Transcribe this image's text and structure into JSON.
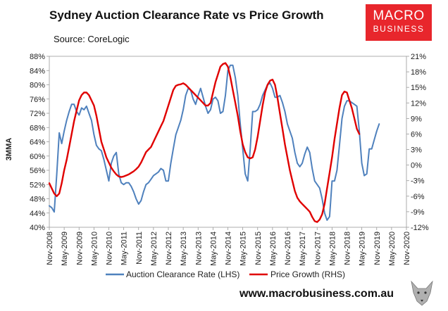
{
  "header": {
    "title": "Sydney Auction Clearance Rate vs Price Growth",
    "source": "Source: CoreLogic"
  },
  "logo": {
    "line1": "MACRO",
    "line2": "BUSINESS"
  },
  "footer": {
    "website": "www.macrobusiness.com.au"
  },
  "colors": {
    "lhs": "#4f81bd",
    "rhs": "#e00000",
    "logo_bg": "#e8262c"
  },
  "chart_data": {
    "type": "line",
    "title": "Sydney Auction Clearance Rate vs Price Growth",
    "ylabel": "3MMA",
    "ylim_left": [
      40,
      88
    ],
    "ylim_right": [
      -12,
      21
    ],
    "left_ticks": [
      "40%",
      "44%",
      "48%",
      "52%",
      "56%",
      "60%",
      "64%",
      "68%",
      "72%",
      "76%",
      "80%",
      "84%",
      "88%"
    ],
    "right_ticks": [
      "-12%",
      "-9%",
      "-6%",
      "-3%",
      "0%",
      "3%",
      "6%",
      "9%",
      "12%",
      "15%",
      "18%",
      "21%"
    ],
    "x_labels": [
      "Nov-2008",
      "May-2009",
      "Nov-2009",
      "May-2010",
      "Nov-2010",
      "May-2011",
      "Nov-2011",
      "May-2012",
      "Nov-2012",
      "May-2013",
      "Nov-2013",
      "May-2014",
      "Nov-2014",
      "May-2015",
      "Nov-2015",
      "May-2016",
      "Nov-2016",
      "May-2017",
      "Nov-2017",
      "May-2018",
      "Nov-2018",
      "May-2019",
      "Nov-2019",
      "May-2020",
      "Nov-2020"
    ],
    "x_range": [
      0,
      144
    ],
    "legend": {
      "position": "bottom"
    },
    "series": [
      {
        "name": "Auction Clearance Rate (LHS)",
        "axis": "left",
        "points": [
          [
            0,
            46
          ],
          [
            1,
            45.5
          ],
          [
            2,
            44.3
          ],
          [
            3,
            55
          ],
          [
            4,
            66.5
          ],
          [
            5,
            63.5
          ],
          [
            6,
            67
          ],
          [
            7,
            70
          ],
          [
            8,
            72.5
          ],
          [
            9,
            74.5
          ],
          [
            10,
            74.5
          ],
          [
            11,
            72.5
          ],
          [
            12,
            71.5
          ],
          [
            13,
            73.5
          ],
          [
            14,
            73
          ],
          [
            15,
            74
          ],
          [
            16,
            72
          ],
          [
            17,
            70
          ],
          [
            18,
            66
          ],
          [
            19,
            63
          ],
          [
            20,
            62
          ],
          [
            21,
            61.5
          ],
          [
            22,
            59
          ],
          [
            23,
            56
          ],
          [
            24,
            53
          ],
          [
            25,
            58
          ],
          [
            26,
            60
          ],
          [
            27,
            61
          ],
          [
            28,
            55
          ],
          [
            29,
            52.5
          ],
          [
            30,
            52
          ],
          [
            31,
            52.5
          ],
          [
            32,
            52.5
          ],
          [
            33,
            51.5
          ],
          [
            34,
            50
          ],
          [
            35,
            48
          ],
          [
            36,
            46.5
          ],
          [
            37,
            47.5
          ],
          [
            38,
            50
          ],
          [
            39,
            52
          ],
          [
            40,
            52.5
          ],
          [
            41,
            53.5
          ],
          [
            42,
            54.5
          ],
          [
            43,
            55
          ],
          [
            44,
            55.5
          ],
          [
            45,
            56.5
          ],
          [
            46,
            56
          ],
          [
            47,
            53
          ],
          [
            48,
            53
          ],
          [
            49,
            58
          ],
          [
            50,
            62
          ],
          [
            51,
            66
          ],
          [
            52,
            68
          ],
          [
            53,
            70
          ],
          [
            54,
            73
          ],
          [
            55,
            77
          ],
          [
            56,
            79
          ],
          [
            57,
            78.5
          ],
          [
            58,
            76
          ],
          [
            59,
            74.5
          ],
          [
            60,
            77
          ],
          [
            61,
            79
          ],
          [
            62,
            76.5
          ],
          [
            63,
            74
          ],
          [
            64,
            72
          ],
          [
            65,
            73
          ],
          [
            66,
            76
          ],
          [
            67,
            76.5
          ],
          [
            68,
            75.5
          ],
          [
            69,
            72
          ],
          [
            70,
            72.5
          ],
          [
            71,
            77
          ],
          [
            72,
            84
          ],
          [
            73,
            85.5
          ],
          [
            74,
            85.5
          ],
          [
            75,
            82
          ],
          [
            76,
            77
          ],
          [
            77,
            69
          ],
          [
            78,
            62
          ],
          [
            79,
            55
          ],
          [
            80,
            53
          ],
          [
            81,
            62
          ],
          [
            82,
            72.5
          ],
          [
            83,
            72.5
          ],
          [
            84,
            73
          ],
          [
            85,
            74.5
          ],
          [
            86,
            77
          ],
          [
            87,
            78.5
          ],
          [
            88,
            80
          ],
          [
            89,
            80.5
          ],
          [
            90,
            79
          ],
          [
            91,
            76.5
          ],
          [
            92,
            76.5
          ],
          [
            93,
            77
          ],
          [
            94,
            75
          ],
          [
            95,
            72.5
          ],
          [
            96,
            69
          ],
          [
            97,
            67
          ],
          [
            98,
            65
          ],
          [
            99,
            61
          ],
          [
            100,
            58
          ],
          [
            101,
            57
          ],
          [
            102,
            58
          ],
          [
            103,
            60.5
          ],
          [
            104,
            62.5
          ],
          [
            105,
            61
          ],
          [
            106,
            56.5
          ],
          [
            107,
            53
          ],
          [
            108,
            52
          ],
          [
            109,
            51
          ],
          [
            110,
            48
          ],
          [
            111,
            44
          ],
          [
            112,
            42
          ],
          [
            113,
            43
          ],
          [
            114,
            53
          ],
          [
            115,
            53
          ],
          [
            116,
            56
          ],
          [
            117,
            63
          ],
          [
            118,
            70.5
          ],
          [
            119,
            74
          ],
          [
            120,
            75.5
          ],
          [
            121,
            75.5
          ],
          [
            122,
            75
          ],
          [
            123,
            74.5
          ],
          [
            124,
            74
          ],
          [
            125,
            67
          ],
          [
            126,
            58
          ],
          [
            127,
            54.5
          ],
          [
            128,
            55
          ],
          [
            129,
            62
          ],
          [
            130,
            62
          ],
          [
            131,
            64.5
          ],
          [
            132,
            67
          ],
          [
            133,
            69
          ]
        ]
      },
      {
        "name": "Price Growth (RHS)",
        "axis": "right",
        "points": [
          [
            0,
            -3.5
          ],
          [
            1,
            -4.5
          ],
          [
            2,
            -5.5
          ],
          [
            3,
            -6
          ],
          [
            4,
            -5.5
          ],
          [
            5,
            -3.5
          ],
          [
            6,
            -1
          ],
          [
            7,
            1
          ],
          [
            8,
            3.5
          ],
          [
            9,
            6
          ],
          [
            10,
            8.5
          ],
          [
            11,
            10.5
          ],
          [
            12,
            12.5
          ],
          [
            13,
            13.5
          ],
          [
            14,
            14
          ],
          [
            15,
            14
          ],
          [
            16,
            13.5
          ],
          [
            17,
            12.5
          ],
          [
            18,
            11.5
          ],
          [
            19,
            9.5
          ],
          [
            20,
            7
          ],
          [
            21,
            4.5
          ],
          [
            22,
            3
          ],
          [
            23,
            1.5
          ],
          [
            24,
            0.5
          ],
          [
            25,
            -0.5
          ],
          [
            26,
            -1.2
          ],
          [
            27,
            -1.8
          ],
          [
            28,
            -2.2
          ],
          [
            29,
            -2.3
          ],
          [
            30,
            -2.2
          ],
          [
            31,
            -2
          ],
          [
            32,
            -1.8
          ],
          [
            33,
            -1.5
          ],
          [
            34,
            -1.2
          ],
          [
            35,
            -0.8
          ],
          [
            36,
            -0.3
          ],
          [
            37,
            0.5
          ],
          [
            38,
            1.5
          ],
          [
            39,
            2.5
          ],
          [
            40,
            3
          ],
          [
            41,
            3.5
          ],
          [
            42,
            4.5
          ],
          [
            43,
            5.5
          ],
          [
            44,
            6.5
          ],
          [
            45,
            7.5
          ],
          [
            46,
            8.5
          ],
          [
            47,
            10
          ],
          [
            48,
            11.5
          ],
          [
            49,
            13
          ],
          [
            50,
            14.5
          ],
          [
            51,
            15.3
          ],
          [
            52,
            15.5
          ],
          [
            53,
            15.6
          ],
          [
            54,
            15.8
          ],
          [
            55,
            15.5
          ],
          [
            56,
            15
          ],
          [
            57,
            14.5
          ],
          [
            58,
            14
          ],
          [
            59,
            13.5
          ],
          [
            60,
            13
          ],
          [
            61,
            12.5
          ],
          [
            62,
            12
          ],
          [
            63,
            11.5
          ],
          [
            64,
            11.5
          ],
          [
            65,
            12
          ],
          [
            66,
            14
          ],
          [
            67,
            16
          ],
          [
            68,
            17.5
          ],
          [
            69,
            19
          ],
          [
            70,
            19.5
          ],
          [
            71,
            19.7
          ],
          [
            72,
            19
          ],
          [
            73,
            17
          ],
          [
            74,
            14.5
          ],
          [
            75,
            12
          ],
          [
            76,
            9.5
          ],
          [
            77,
            6.5
          ],
          [
            78,
            4
          ],
          [
            79,
            2.5
          ],
          [
            80,
            1.5
          ],
          [
            81,
            1.3
          ],
          [
            82,
            1.5
          ],
          [
            83,
            3
          ],
          [
            84,
            5.5
          ],
          [
            85,
            8.5
          ],
          [
            86,
            11.5
          ],
          [
            87,
            14
          ],
          [
            88,
            15.5
          ],
          [
            89,
            16.3
          ],
          [
            90,
            16.5
          ],
          [
            91,
            15.5
          ],
          [
            92,
            13
          ],
          [
            93,
            10
          ],
          [
            94,
            7
          ],
          [
            95,
            4
          ],
          [
            96,
            1.5
          ],
          [
            97,
            -1
          ],
          [
            98,
            -3
          ],
          [
            99,
            -5
          ],
          [
            100,
            -6.3
          ],
          [
            101,
            -7
          ],
          [
            102,
            -7.5
          ],
          [
            103,
            -8
          ],
          [
            104,
            -8.5
          ],
          [
            105,
            -9
          ],
          [
            106,
            -10
          ],
          [
            107,
            -10.8
          ],
          [
            108,
            -11
          ],
          [
            109,
            -10.5
          ],
          [
            110,
            -9.5
          ],
          [
            111,
            -7.5
          ],
          [
            112,
            -4.5
          ],
          [
            113,
            -1.5
          ],
          [
            114,
            1.5
          ],
          [
            115,
            5
          ],
          [
            116,
            8
          ],
          [
            117,
            11
          ],
          [
            118,
            13.5
          ],
          [
            119,
            14.2
          ],
          [
            120,
            14
          ],
          [
            121,
            12.5
          ],
          [
            122,
            11
          ],
          [
            123,
            9
          ],
          [
            124,
            7
          ],
          [
            125,
            6
          ]
        ]
      }
    ]
  }
}
